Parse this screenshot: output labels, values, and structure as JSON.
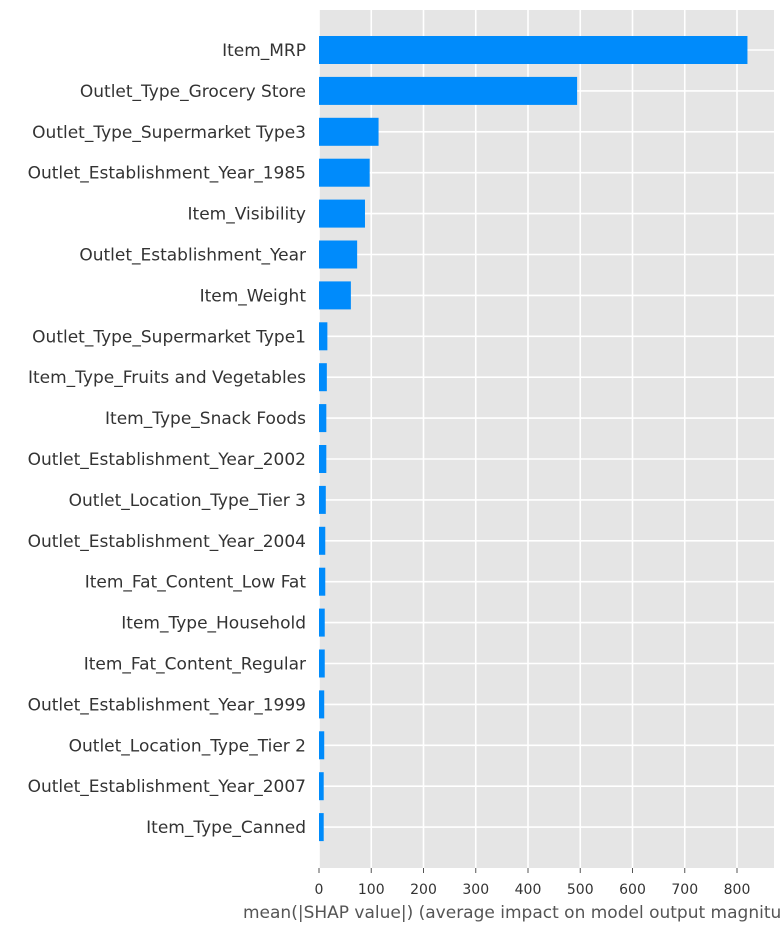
{
  "chart_data": {
    "type": "bar",
    "orientation": "horizontal",
    "categories": [
      "Item_MRP",
      "Outlet_Type_Grocery Store",
      "Outlet_Type_Supermarket Type3",
      "Outlet_Establishment_Year_1985",
      "Item_Visibility",
      "Outlet_Establishment_Year",
      "Item_Weight",
      "Outlet_Type_Supermarket Type1",
      "Item_Type_Fruits and Vegetables",
      "Item_Type_Snack Foods",
      "Outlet_Establishment_Year_2002",
      "Outlet_Location_Type_Tier 3",
      "Outlet_Establishment_Year_2004",
      "Item_Fat_Content_Low Fat",
      "Item_Type_Household",
      "Item_Fat_Content_Regular",
      "Outlet_Establishment_Year_1999",
      "Outlet_Location_Type_Tier 2",
      "Outlet_Establishment_Year_2007",
      "Item_Type_Canned"
    ],
    "values": [
      820,
      494,
      114,
      97,
      88,
      73,
      61,
      16,
      15,
      14,
      14,
      13,
      12,
      12,
      11,
      11,
      10,
      10,
      9,
      9
    ],
    "xlabel": "mean(|SHAP value|) (average impact on model output magnitude)",
    "xticks": [
      0,
      100,
      200,
      300,
      400,
      500,
      600,
      700,
      800
    ],
    "xlim": [
      0,
      855
    ],
    "grid": true,
    "bar_color": "#008bfb",
    "background_color": "#e5e5e5",
    "grid_color": "#ffffff"
  }
}
